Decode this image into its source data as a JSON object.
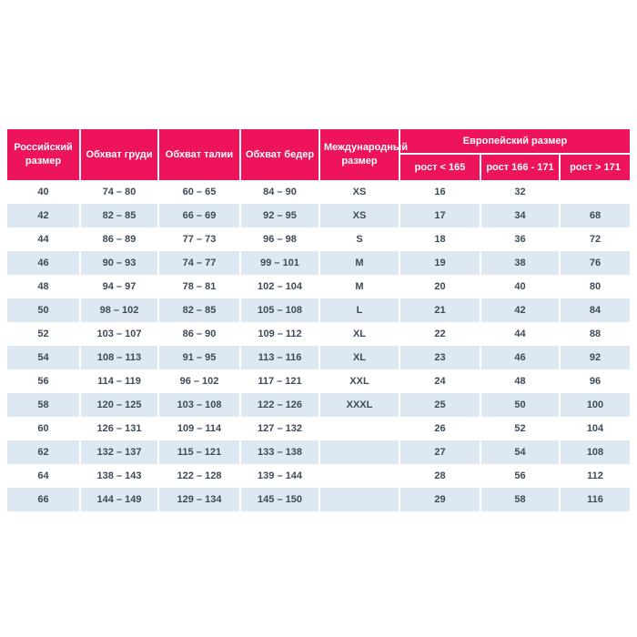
{
  "colors": {
    "header_bg": "#ED145B",
    "header_text": "#FFFFFF",
    "row_alt_bg": "#DDE8F3",
    "row_bg": "#FFFFFF",
    "cell_text": "#3E4A59"
  },
  "chart_data": {
    "type": "table",
    "title": "",
    "columns": [
      "Российский размер",
      "Обхват груди",
      "Обхват талии",
      "Обхват бедер",
      "Международный размер"
    ],
    "group_header": {
      "label": "Европейский размер",
      "sub_columns": [
        "рост < 165",
        "рост 166 - 171",
        "рост > 171"
      ]
    },
    "rows": [
      [
        "40",
        "74 – 80",
        "60 – 65",
        "84 – 90",
        "XS",
        "16",
        "32",
        ""
      ],
      [
        "42",
        "82 – 85",
        "66 – 69",
        "92 – 95",
        "XS",
        "17",
        "34",
        "68"
      ],
      [
        "44",
        "86 – 89",
        "77 – 73",
        "96 – 98",
        "S",
        "18",
        "36",
        "72"
      ],
      [
        "46",
        "90 – 93",
        "74 – 77",
        "99 – 101",
        "M",
        "19",
        "38",
        "76"
      ],
      [
        "48",
        "94 – 97",
        "78 – 81",
        "102 – 104",
        "M",
        "20",
        "40",
        "80"
      ],
      [
        "50",
        "98 – 102",
        "82 – 85",
        "105 – 108",
        "L",
        "21",
        "42",
        "84"
      ],
      [
        "52",
        "103 – 107",
        "86 – 90",
        "109 – 112",
        "XL",
        "22",
        "44",
        "88"
      ],
      [
        "54",
        "108 – 113",
        "91 – 95",
        "113 – 116",
        "XL",
        "23",
        "46",
        "92"
      ],
      [
        "56",
        "114 – 119",
        "96 – 102",
        "117 – 121",
        "XXL",
        "24",
        "48",
        "96"
      ],
      [
        "58",
        "120 – 125",
        "103 – 108",
        "122 – 126",
        "XXXL",
        "25",
        "50",
        "100"
      ],
      [
        "60",
        "126 – 131",
        "109 – 114",
        "127 – 132",
        "",
        "26",
        "52",
        "104"
      ],
      [
        "62",
        "132 – 137",
        "115 – 121",
        "133 – 138",
        "",
        "27",
        "54",
        "108"
      ],
      [
        "64",
        "138 – 143",
        "122 – 128",
        "139 – 144",
        "",
        "28",
        "56",
        "112"
      ],
      [
        "66",
        "144 – 149",
        "129 – 134",
        "145 – 150",
        "",
        "29",
        "58",
        "116"
      ]
    ]
  }
}
